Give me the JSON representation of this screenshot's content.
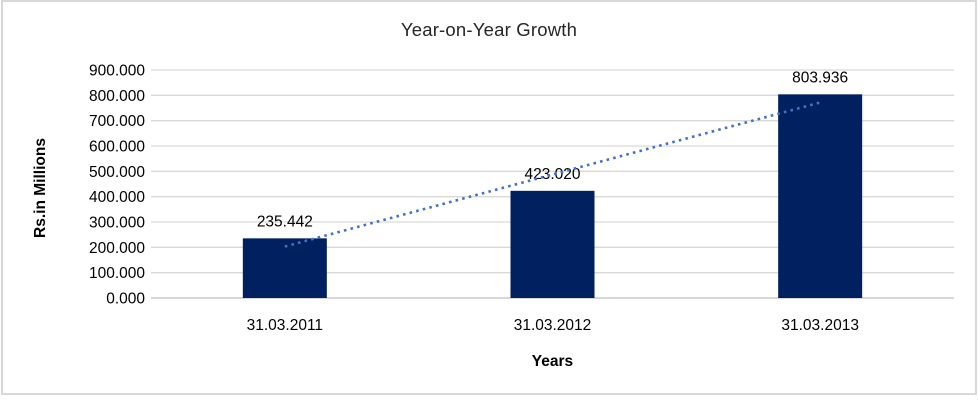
{
  "chart_data": {
    "type": "bar",
    "title": "Year-on-Year Growth",
    "xlabel": "Years",
    "ylabel": "Rs.in Millions",
    "categories": [
      "31.03.2011",
      "31.03.2012",
      "31.03.2013"
    ],
    "values": [
      235.442,
      423.02,
      803.936
    ],
    "data_labels": [
      "235.442",
      "423.020",
      "803.936"
    ],
    "ylim": [
      0,
      900
    ],
    "ytick_step": 100,
    "ytick_labels": [
      "0.000",
      "100.000",
      "200.000",
      "300.000",
      "400.000",
      "500.000",
      "600.000",
      "700.000",
      "800.000",
      "900.000"
    ],
    "grid": true,
    "legend": "none",
    "trendline": {
      "type": "linear",
      "style": "dotted"
    },
    "colors": {
      "bar": "#002060",
      "trendline": "#4472c4",
      "gridline": "#d9d9d9",
      "axis_line": "#bfbfbf",
      "text": "#000000",
      "title_text": "#262626",
      "frame_border": "#d8d8d8",
      "background": "#ffffff"
    }
  }
}
